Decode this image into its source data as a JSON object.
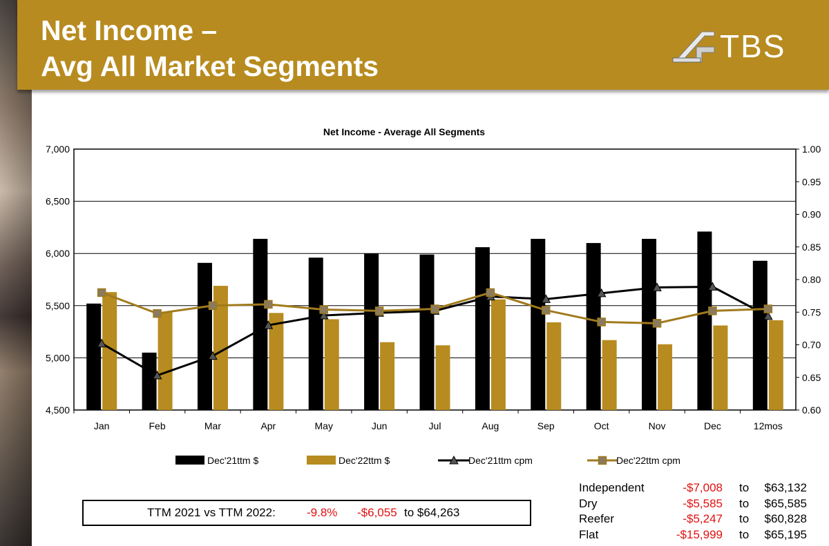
{
  "header": {
    "title_line1": "Net Income –",
    "title_line2": "Avg All Market Segments",
    "logo_text": "TBS"
  },
  "colors": {
    "banner": "#b78b1f",
    "dec21_bar": "#000000",
    "dec22_bar": "#b78b1f",
    "dec21_line": "#000000",
    "dec22_line": "#a07a1c"
  },
  "chart_data": {
    "type": "bar",
    "title": "Net Income - Average All Segments",
    "categories": [
      "Jan",
      "Feb",
      "Mar",
      "Apr",
      "May",
      "Jun",
      "Jul",
      "Aug",
      "Sep",
      "Oct",
      "Nov",
      "Dec",
      "12mos"
    ],
    "y_left": {
      "min": 4500,
      "max": 7000,
      "ticks": [
        "4,500",
        "5,000",
        "5,500",
        "6,000",
        "6,500",
        "7,000"
      ]
    },
    "y_right": {
      "min": 0.6,
      "max": 1.0,
      "ticks": [
        "0.60",
        "0.65",
        "0.70",
        "0.75",
        "0.80",
        "0.85",
        "0.90",
        "0.95",
        "1.00"
      ]
    },
    "series": [
      {
        "name": "Dec'21ttm $",
        "kind": "bar",
        "axis": "left",
        "values": [
          5520,
          5050,
          5910,
          6140,
          5960,
          6000,
          5990,
          6060,
          6140,
          6100,
          6140,
          6210,
          5930
        ]
      },
      {
        "name": "Dec'22ttm $",
        "kind": "bar",
        "axis": "left",
        "values": [
          5630,
          5440,
          5690,
          5430,
          5370,
          5150,
          5120,
          5560,
          5340,
          5170,
          5130,
          5310,
          5360
        ]
      },
      {
        "name": "Dec'21ttm cpm",
        "kind": "line",
        "axis": "right",
        "marker": "triangle",
        "values": [
          0.702,
          0.653,
          0.683,
          0.73,
          0.745,
          0.749,
          0.752,
          0.774,
          0.77,
          0.779,
          0.788,
          0.789,
          0.744
        ]
      },
      {
        "name": "Dec'22ttm cpm",
        "kind": "line",
        "axis": "right",
        "marker": "square",
        "values": [
          0.78,
          0.748,
          0.76,
          0.762,
          0.754,
          0.752,
          0.755,
          0.78,
          0.753,
          0.735,
          0.733,
          0.752,
          0.755
        ]
      }
    ],
    "legend": [
      "Dec'21ttm $",
      "Dec'22ttm $",
      "Dec'21ttm cpm",
      "Dec'22ttm cpm"
    ],
    "legend_position": "bottom"
  },
  "summary": {
    "label": "TTM 2021 vs TTM 2022:",
    "pct": "-9.8%",
    "delta": "-$6,055",
    "to_text": "to $64,263"
  },
  "segments": [
    {
      "name": "Independent",
      "delta": "-$7,008",
      "to": "to",
      "value": "$63,132"
    },
    {
      "name": "Dry",
      "delta": "-$5,585",
      "to": "to",
      "value": "$65,585"
    },
    {
      "name": "Reefer",
      "delta": "-$5,247",
      "to": "to",
      "value": "$60,828"
    },
    {
      "name": "Flat",
      "delta": "-$15,999",
      "to": "to",
      "value": "$65,195"
    }
  ]
}
